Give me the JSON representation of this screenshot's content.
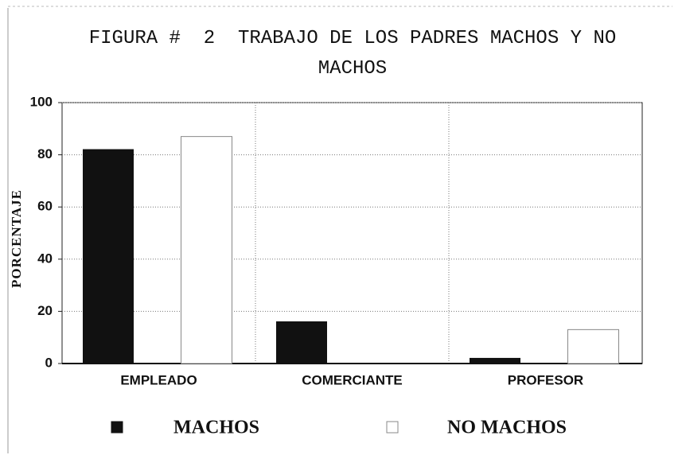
{
  "chart_data": {
    "type": "bar",
    "title": "FIGURA #  2  TRABAJO DE LOS PADRES MACHOS Y NO MACHOS",
    "y_label": "PORCENTAJE",
    "categories": [
      "EMPLEADO",
      "COMERCIANTE",
      "PROFESOR"
    ],
    "series": [
      {
        "name": "MACHOS",
        "color": "#111111",
        "values": [
          82,
          16,
          2
        ]
      },
      {
        "name": "NO MACHOS",
        "color": "#ffffff",
        "values": [
          87,
          0,
          13
        ]
      }
    ],
    "ylim": [
      0,
      100
    ],
    "yticks": [
      0,
      20,
      40,
      60,
      80,
      100
    ],
    "grid": true
  }
}
